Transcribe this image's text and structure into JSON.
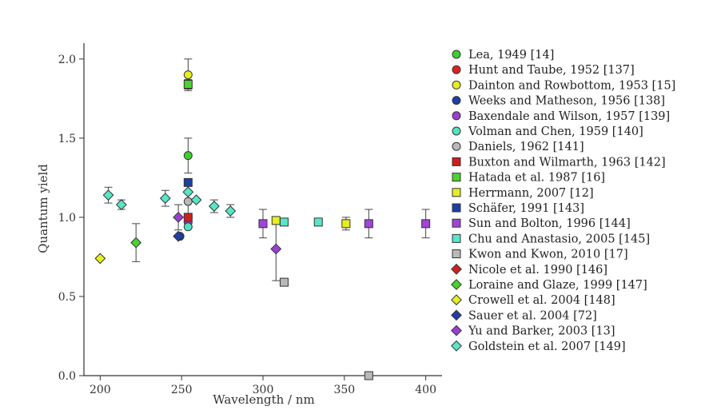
{
  "chart_data": {
    "type": "scatter",
    "xlabel": "Wavelength / nm",
    "ylabel": "Quantum yield",
    "xlim": [
      190,
      410
    ],
    "ylim": [
      0,
      2.1
    ],
    "xticks": [
      200,
      250,
      300,
      350,
      400
    ],
    "yticks": [
      0.0,
      0.5,
      1.0,
      1.5,
      2.0
    ],
    "xtick_labels": [
      "200",
      "250",
      "300",
      "350",
      "400"
    ],
    "ytick_labels": [
      "0.0",
      "0.5",
      "1.0",
      "1.5",
      "2.0"
    ],
    "legend_position": "right",
    "series": [
      {
        "name": "Lea, 1949 [14]",
        "marker": "circle",
        "color": "#3ecf2f",
        "points": [
          {
            "x": 254,
            "y": 1.39,
            "err": 0.11
          }
        ]
      },
      {
        "name": "Hunt and Taube, 1952 [137]",
        "marker": "circle",
        "color": "#e0201e",
        "points": [
          {
            "x": 254,
            "y": 1.0
          }
        ]
      },
      {
        "name": "Dainton and Rowbottom, 1953 [15]",
        "marker": "circle",
        "color": "#e6ef1f",
        "points": [
          {
            "x": 254,
            "y": 1.9,
            "err": 0.1
          }
        ]
      },
      {
        "name": "Weeks and Matheson, 1956 [138]",
        "marker": "circle",
        "color": "#1f3ea6",
        "points": [
          {
            "x": 249,
            "y": 0.88
          }
        ]
      },
      {
        "name": "Baxendale and Wilson, 1957 [139]",
        "marker": "circle",
        "color": "#9b3fd4",
        "points": [
          {
            "x": 254,
            "y": 0.97
          }
        ]
      },
      {
        "name": "Volman and Chen, 1959 [140]",
        "marker": "circle",
        "color": "#52e3c2",
        "points": [
          {
            "x": 254,
            "y": 0.94
          }
        ]
      },
      {
        "name": "Daniels, 1962 [141]",
        "marker": "circle",
        "color": "#b9b9b9",
        "points": [
          {
            "x": 254,
            "y": 1.1,
            "err": 0.12
          }
        ]
      },
      {
        "name": "Buxton and Wilmarth, 1963 [142]",
        "marker": "square",
        "color": "#cf1e1e",
        "points": [
          {
            "x": 254,
            "y": 1.0
          }
        ]
      },
      {
        "name": "Hatada et al. 1987 [16]",
        "marker": "square",
        "color": "#4bd22e",
        "points": [
          {
            "x": 254,
            "y": 1.84,
            "err": 0.03
          }
        ]
      },
      {
        "name": "Herrmann, 2007 [12]",
        "marker": "square",
        "color": "#e6ef1f",
        "points": [
          {
            "x": 308,
            "y": 0.98
          },
          {
            "x": 351,
            "y": 0.96,
            "err": 0.04
          }
        ]
      },
      {
        "name": "Schäfer, 1991 [143]",
        "marker": "square",
        "color": "#1f3ea6",
        "points": [
          {
            "x": 254,
            "y": 1.22
          }
        ]
      },
      {
        "name": "Sun and Bolton, 1996 [144]",
        "marker": "square",
        "color": "#a244d8",
        "points": [
          {
            "x": 300,
            "y": 0.96,
            "err": 0.09
          },
          {
            "x": 365,
            "y": 0.96,
            "err": 0.09
          },
          {
            "x": 400,
            "y": 0.96,
            "err": 0.09
          }
        ]
      },
      {
        "name": "Chu and Anastasio, 2005 [145]",
        "marker": "square",
        "color": "#56e6c8",
        "points": [
          {
            "x": 313,
            "y": 0.97
          },
          {
            "x": 334,
            "y": 0.97
          }
        ]
      },
      {
        "name": "Kwon and Kwon, 2010 [17]",
        "marker": "square",
        "color": "#b9b9b9",
        "points": [
          {
            "x": 313,
            "y": 0.59
          },
          {
            "x": 365,
            "y": 0.0
          }
        ]
      },
      {
        "name": "Nicole et al. 1990 [146]",
        "marker": "diamond",
        "color": "#d11f1f",
        "points": []
      },
      {
        "name": "Loraine and Glaze, 1999 [147]",
        "marker": "diamond",
        "color": "#4bd22e",
        "points": [
          {
            "x": 222,
            "y": 0.84,
            "err": 0.12
          }
        ]
      },
      {
        "name": "Crowell et al. 2004 [148]",
        "marker": "diamond",
        "color": "#e6ef1f",
        "points": [
          {
            "x": 200,
            "y": 0.74
          }
        ]
      },
      {
        "name": "Sauer et al. 2004 [72]",
        "marker": "diamond",
        "color": "#1f3ea6",
        "points": [
          {
            "x": 248,
            "y": 0.88
          }
        ]
      },
      {
        "name": "Yu and Barker, 2003 [13]",
        "marker": "diamond",
        "color": "#9b3fd4",
        "points": [
          {
            "x": 248,
            "y": 1.0,
            "err": 0.08
          },
          {
            "x": 308,
            "y": 0.8,
            "err": 0.2
          }
        ]
      },
      {
        "name": "Goldstein et al. 2007 [149]",
        "marker": "diamond",
        "color": "#56e6c8",
        "points": [
          {
            "x": 205,
            "y": 1.14,
            "err": 0.05
          },
          {
            "x": 213,
            "y": 1.08,
            "err": 0.03
          },
          {
            "x": 240,
            "y": 1.12,
            "err": 0.05
          },
          {
            "x": 254,
            "y": 1.16
          },
          {
            "x": 259,
            "y": 1.11
          },
          {
            "x": 270,
            "y": 1.07,
            "err": 0.04
          },
          {
            "x": 280,
            "y": 1.04,
            "err": 0.04
          }
        ]
      }
    ]
  }
}
